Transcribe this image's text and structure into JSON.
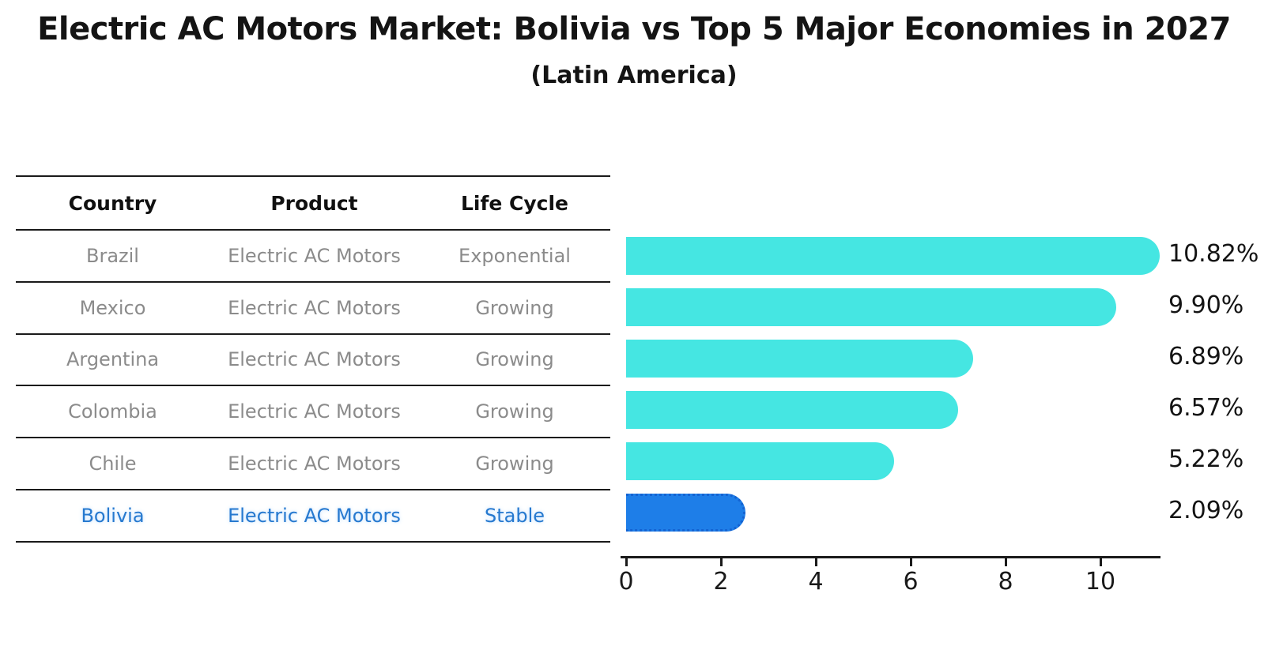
{
  "title": "Electric AC Motors Market: Bolivia vs Top 5 Major Economies in 2027",
  "subtitle": "(Latin America)",
  "table": {
    "headers": [
      "Country",
      "Product",
      "Life Cycle"
    ],
    "rows": [
      {
        "country": "Brazil",
        "product": "Electric AC Motors",
        "life_cycle": "Exponential",
        "highlighted": false
      },
      {
        "country": "Mexico",
        "product": "Electric AC Motors",
        "life_cycle": "Growing",
        "highlighted": false
      },
      {
        "country": "Argentina",
        "product": "Electric AC Motors",
        "life_cycle": "Growing",
        "highlighted": false
      },
      {
        "country": "Colombia",
        "product": "Electric AC Motors",
        "life_cycle": "Growing",
        "highlighted": false
      },
      {
        "country": "Chile",
        "product": "Electric AC Motors",
        "life_cycle": "Growing",
        "highlighted": false
      },
      {
        "country": "Bolivia",
        "product": "Electric AC Motors",
        "life_cycle": "Stable",
        "highlighted": true
      }
    ]
  },
  "chart_data": {
    "type": "bar",
    "orientation": "horizontal",
    "title": "Electric AC Motors Market: Bolivia vs Top 5 Major Economies in 2027",
    "subtitle": "(Latin America)",
    "categories": [
      "Brazil",
      "Mexico",
      "Argentina",
      "Colombia",
      "Chile",
      "Bolivia"
    ],
    "values": [
      10.82,
      9.9,
      6.89,
      6.57,
      5.22,
      2.09
    ],
    "value_labels": [
      "10.82%",
      "9.90%",
      "6.89%",
      "6.57%",
      "5.22%",
      "2.09%"
    ],
    "xticks": [
      0,
      2,
      4,
      6,
      8,
      10
    ],
    "xlim": [
      0,
      11.3
    ],
    "bar_color": "#45e6e2",
    "highlight_color": "#1e7ee8",
    "highlight_index": 5,
    "highlight_border_style": "dotted",
    "grid": false,
    "legend": false
  }
}
